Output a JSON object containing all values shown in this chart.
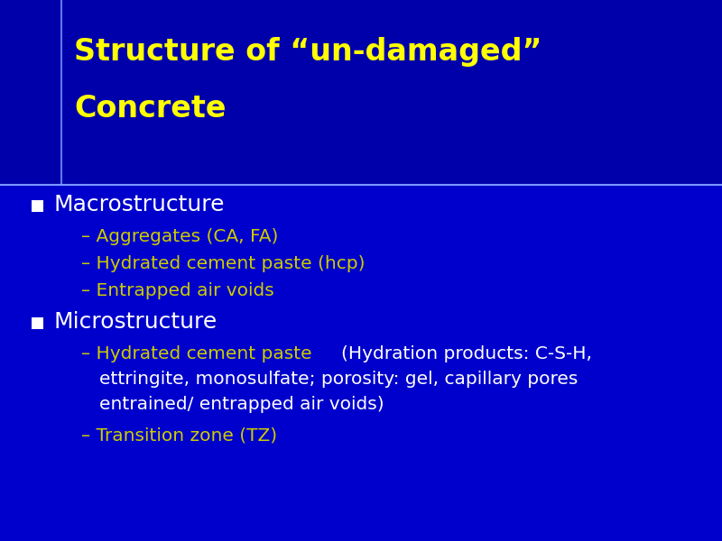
{
  "title_line1": "Structure of “un-damaged”",
  "title_line2": "Concrete",
  "title_color": "#FFFF00",
  "title_bg_color": "#0000AA",
  "body_bg_color": "#0000CC",
  "divider_color": "#7799FF",
  "bullet_color": "#FFFFFF",
  "bullet1_text": "Macrostructure",
  "bullet2_text": "Microstructure",
  "sub_yellow_color": "#CCCC00",
  "sub_white_color": "#FFFFFF",
  "macro_subs": [
    "– Aggregates (CA, FA)",
    "– Hydrated cement paste (hcp)",
    "– Entrapped air voids"
  ],
  "micro_sub1_yellow": "– Hydrated cement paste ",
  "micro_sub1_white_line1": "(Hydration products: C-S-H,",
  "micro_sub1_white_line2": "ettringite, monosulfate; porosity: gel, capillary pores",
  "micro_sub1_white_line3": "entrained/ entrapped air voids)",
  "micro_sub2": "– Transition zone (TZ)"
}
